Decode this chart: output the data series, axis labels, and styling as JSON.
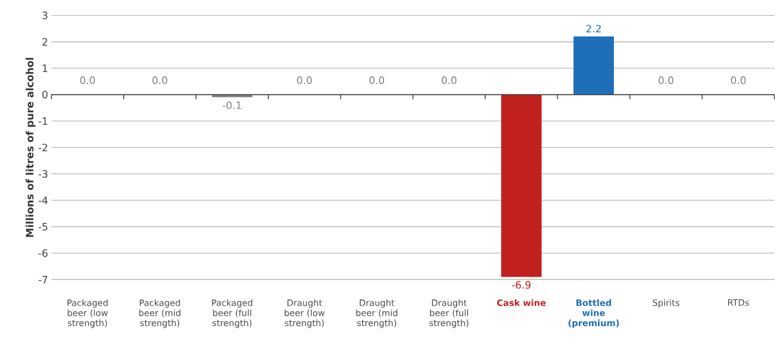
{
  "chart_data": {
    "type": "bar",
    "ylabel": "Millions of litres of pure alcohol",
    "categories": [
      "Packaged beer (low strength)",
      "Packaged beer (mid strength)",
      "Packaged beer (full strength)",
      "Draught beer (low strength)",
      "Draught beer (mid strength)",
      "Draught beer (full strength)",
      "Cask wine",
      "Bottled wine (premium)",
      "Spirits",
      "RTDs"
    ],
    "values": [
      0.0,
      0.0,
      -0.1,
      0.0,
      0.0,
      0.0,
      -6.9,
      2.2,
      0.0,
      0.0
    ],
    "value_labels": [
      "0.0",
      "0.0",
      "-0.1",
      "0.0",
      "0.0",
      "0.0",
      "-6.9",
      "2.2",
      "0.0",
      "0.0"
    ],
    "colors": [
      "#808080",
      "#808080",
      "#808080",
      "#808080",
      "#808080",
      "#808080",
      "#c0201e",
      "#1f6fb8",
      "#808080",
      "#808080"
    ],
    "ylim": [
      -7,
      3
    ],
    "yticks": [
      -7,
      -6,
      -5,
      -4,
      -3,
      -2,
      -1,
      0,
      1,
      2,
      3
    ],
    "grid": "y"
  }
}
